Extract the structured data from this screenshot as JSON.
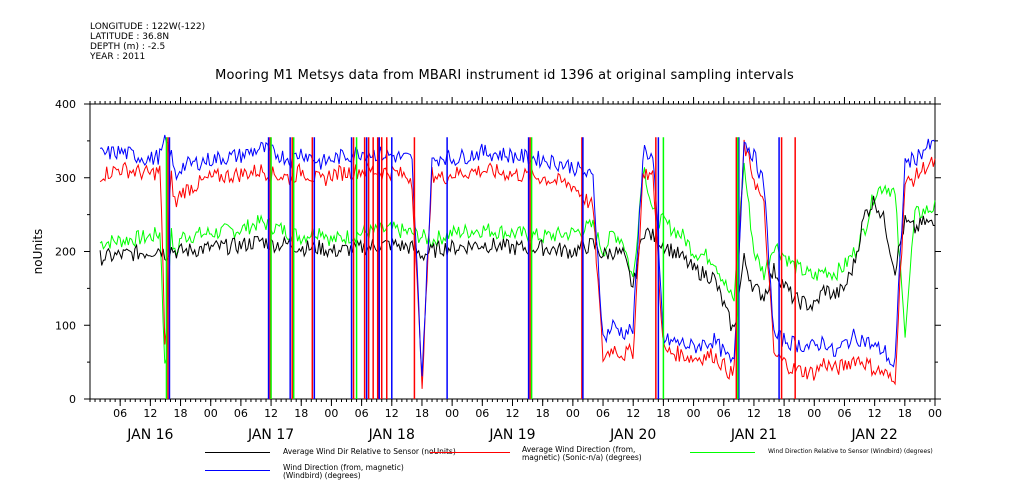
{
  "header": {
    "meta_lines": [
      "LONGITUDE : 122W(-122)",
      "LATITUDE : 36.8N",
      "DEPTH (m) : -2.5",
      "YEAR : 2011"
    ],
    "title": "Mooring M1 Metsys data from MBARI instrument id 1396 at original sampling intervals"
  },
  "chart_data": {
    "type": "line",
    "title": "Mooring M1 Metsys data from MBARI instrument id 1396 at original sampling intervals",
    "ylabel": "noUnits",
    "xlabel": "",
    "ylim": [
      0,
      400
    ],
    "yticks": [
      0,
      100,
      200,
      300,
      400
    ],
    "xlim_hours": [
      0,
      168
    ],
    "x_hour_ticks": [
      "06",
      "12",
      "18",
      "00",
      "06",
      "12",
      "18",
      "00",
      "06",
      "12",
      "18",
      "00",
      "06",
      "12",
      "18",
      "00",
      "06",
      "12",
      "18",
      "00",
      "06",
      "12",
      "18",
      "00",
      "06",
      "12",
      "18",
      "00"
    ],
    "day_labels": [
      "JAN 16",
      "JAN 17",
      "JAN 18",
      "JAN 19",
      "JAN 20",
      "JAN 21",
      "JAN 22"
    ],
    "legend_placement": "bottom",
    "grid": false,
    "series": [
      {
        "name": "Average Wind Dir Relative to Sensor (noUnits)",
        "color": "#000000",
        "x": [
          0,
          6,
          12,
          14,
          15,
          16,
          17,
          18,
          24,
          30,
          34,
          36,
          40,
          42,
          46,
          48,
          54,
          60,
          64,
          66,
          68,
          70,
          72,
          78,
          84,
          90,
          96,
          100,
          102,
          104,
          106,
          108,
          110,
          112,
          114,
          118,
          120,
          124,
          128,
          130,
          132,
          134,
          136,
          140,
          144,
          146,
          148,
          150,
          152,
          154,
          156,
          158,
          160,
          162,
          164,
          166,
          168
        ],
        "values": [
          190,
          195,
          200,
          205,
          195,
          205,
          200,
          200,
          205,
          208,
          215,
          210,
          210,
          205,
          205,
          200,
          205,
          210,
          205,
          195,
          200,
          205,
          205,
          210,
          205,
          205,
          200,
          210,
          195,
          200,
          195,
          150,
          230,
          220,
          210,
          190,
          175,
          165,
          90,
          190,
          150,
          140,
          175,
          135,
          125,
          150,
          140,
          150,
          185,
          250,
          270,
          240,
          175,
          240,
          230,
          240,
          235
        ]
      },
      {
        "name": "Average Wind Direction (from, magnetic) (Sonic-n/a) (degrees)",
        "color": "#ff0000",
        "x": [
          0,
          6,
          12,
          14,
          15,
          16,
          17,
          18,
          24,
          30,
          34,
          36,
          40,
          42,
          46,
          48,
          54,
          60,
          64,
          66,
          68,
          70,
          72,
          78,
          84,
          90,
          96,
          100,
          102,
          104,
          106,
          108,
          110,
          112,
          114,
          118,
          120,
          124,
          128,
          130,
          132,
          134,
          136,
          140,
          144,
          146,
          148,
          150,
          152,
          154,
          156,
          158,
          160,
          162,
          164,
          166,
          168
        ],
        "values": [
          300,
          312,
          305,
          310,
          45,
          310,
          260,
          280,
          300,
          305,
          310,
          305,
          300,
          310,
          295,
          305,
          310,
          308,
          300,
          20,
          305,
          300,
          305,
          310,
          305,
          300,
          290,
          260,
          55,
          70,
          60,
          65,
          310,
          300,
          65,
          60,
          55,
          60,
          30,
          345,
          300,
          260,
          60,
          40,
          35,
          50,
          40,
          45,
          55,
          50,
          40,
          35,
          20,
          290,
          300,
          315,
          320
        ]
      },
      {
        "name": "Wind Direction Relative to Sensor (Windbird) (degrees)",
        "color": "#00ff00",
        "x": [
          0,
          6,
          12,
          14,
          15,
          16,
          17,
          18,
          24,
          30,
          34,
          36,
          40,
          42,
          46,
          48,
          54,
          60,
          64,
          66,
          68,
          70,
          72,
          78,
          84,
          90,
          96,
          100,
          102,
          104,
          106,
          108,
          110,
          112,
          114,
          118,
          120,
          124,
          128,
          130,
          132,
          134,
          136,
          140,
          144,
          146,
          148,
          150,
          152,
          154,
          156,
          158,
          160,
          162,
          164,
          166,
          168
        ],
        "values": [
          210,
          215,
          220,
          225,
          15,
          230,
          190,
          220,
          225,
          230,
          240,
          235,
          225,
          220,
          230,
          215,
          225,
          230,
          225,
          220,
          215,
          220,
          225,
          230,
          225,
          220,
          225,
          235,
          200,
          225,
          215,
          160,
          320,
          250,
          240,
          220,
          200,
          190,
          130,
          320,
          200,
          170,
          210,
          180,
          165,
          175,
          170,
          180,
          200,
          230,
          280,
          290,
          280,
          90,
          250,
          255,
          260
        ]
      },
      {
        "name": "Wind Direction (from, magnetic) (Windbird) (degrees)",
        "color": "#0000ff",
        "x": [
          0,
          6,
          12,
          14,
          15,
          16,
          17,
          18,
          24,
          30,
          34,
          36,
          40,
          42,
          46,
          48,
          54,
          60,
          64,
          66,
          68,
          70,
          72,
          78,
          84,
          90,
          96,
          100,
          102,
          104,
          106,
          108,
          110,
          112,
          114,
          118,
          120,
          124,
          128,
          130,
          132,
          134,
          136,
          140,
          144,
          146,
          148,
          150,
          152,
          154,
          156,
          158,
          160,
          162,
          164,
          166,
          168
        ],
        "values": [
          330,
          335,
          325,
          330,
          350,
          335,
          300,
          315,
          325,
          330,
          340,
          335,
          325,
          335,
          320,
          325,
          335,
          330,
          325,
          30,
          320,
          330,
          325,
          335,
          330,
          325,
          315,
          300,
          80,
          100,
          90,
          95,
          340,
          325,
          80,
          75,
          70,
          80,
          45,
          350,
          330,
          290,
          85,
          75,
          70,
          80,
          60,
          75,
          85,
          80,
          70,
          65,
          40,
          320,
          325,
          340,
          345
        ]
      }
    ],
    "spikes": [
      {
        "series": 1,
        "x": [
          15.5,
          35.8,
          40.2,
          44.2,
          52.4,
          54.6,
          55.4,
          56.3,
          57.2,
          58.0,
          59.0,
          64.5,
          87.5,
          97.8,
          112.5,
          128.5,
          137.5,
          140.2
        ]
      },
      {
        "series": 3,
        "x": [
          15.8,
          35.5,
          39.8,
          44.6,
          52.0,
          55.0,
          57.5,
          60.0,
          71.0,
          87.2,
          98.0,
          113.0,
          129.0,
          137.0
        ]
      },
      {
        "series": 2,
        "x": [
          15.2,
          36.0,
          40.5,
          53.0,
          87.8,
          114.0,
          128.8
        ]
      }
    ]
  }
}
